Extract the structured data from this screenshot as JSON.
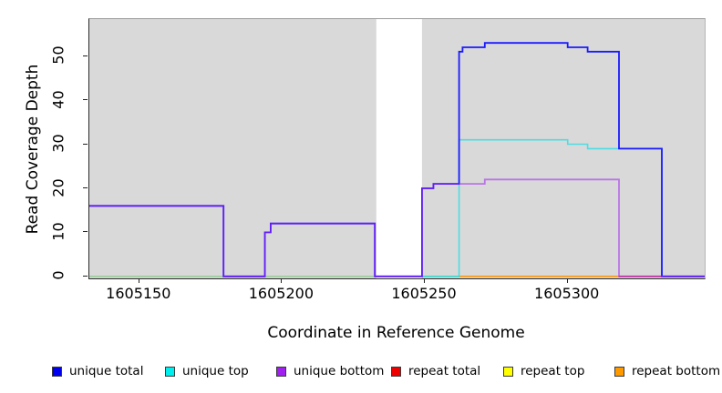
{
  "chart_data": {
    "type": "line",
    "subtype": "step-coverage-plot",
    "title": "",
    "xlabel": "Coordinate in Reference Genome",
    "ylabel": "Read Coverage Depth",
    "xlim": [
      1605132.5,
      1605348
    ],
    "ylim": [
      -0.45,
      58.4
    ],
    "x_ticks": [
      1605150,
      1605200,
      1605250,
      1605300
    ],
    "y_ticks": [
      0,
      10,
      20,
      30,
      40,
      50
    ],
    "grid": false,
    "panel_bg": "#d9d9d9",
    "mask_region": {
      "x0": 1605233,
      "x1": 1605249,
      "color": "#ffffff"
    },
    "series": [
      {
        "id": "baseline-annotation",
        "legend_label": null,
        "color": "#8fcb8f",
        "opacity": 1,
        "width": 1.4,
        "layer": 0,
        "points": [
          [
            1605132.5,
            0
          ]
        ],
        "end": 1605262
      },
      {
        "id": "repeat-top",
        "legend_label": "repeat top",
        "color": "#ffff00",
        "opacity": 0.8,
        "width": 1.4,
        "layer": 1,
        "points": [
          [
            1605262,
            0
          ]
        ],
        "end": 1605318
      },
      {
        "id": "repeat-total",
        "legend_label": "repeat total",
        "color": "#ee0000",
        "opacity": 0.75,
        "width": 1.5,
        "layer": 1,
        "points": [
          [
            1605262,
            0
          ]
        ],
        "end": 1605333
      },
      {
        "id": "repeat-bottom",
        "legend_label": "repeat bottom",
        "color": "#ff9300",
        "opacity": 1,
        "width": 1.5,
        "layer": 1,
        "points": [
          [
            1605262,
            0
          ]
        ],
        "end": 1605318
      },
      {
        "id": "unique-top",
        "legend_label": "unique top",
        "color": "#00dfe8",
        "opacity": 0.65,
        "width": 1.6,
        "layer": 1,
        "points": [
          [
            1605249,
            0
          ],
          [
            1605262,
            31
          ],
          [
            1605300,
            30
          ],
          [
            1605307,
            29
          ],
          [
            1605333,
            0
          ]
        ],
        "end": 1605348
      },
      {
        "id": "unique-total",
        "legend_label": "unique total",
        "color": "#1a1aff",
        "opacity": 1,
        "width": 1.8,
        "layer": 1,
        "points": [
          [
            1605132.5,
            16
          ],
          [
            1605179.5,
            0
          ],
          [
            1605194,
            10
          ],
          [
            1605196,
            12
          ],
          [
            1605232.5,
            0
          ],
          [
            1605249,
            20
          ],
          [
            1605253,
            21
          ],
          [
            1605262,
            51
          ],
          [
            1605263.2,
            52
          ],
          [
            1605271,
            53
          ],
          [
            1605300,
            52
          ],
          [
            1605307,
            51
          ],
          [
            1605318,
            29
          ],
          [
            1605333,
            0
          ]
        ],
        "end": 1605348
      },
      {
        "id": "unique-bottom",
        "legend_label": "unique bottom",
        "color": "#a020f0",
        "opacity": 0.55,
        "width": 1.8,
        "layer": 1,
        "points": [
          [
            1605132.5,
            16
          ],
          [
            1605179.5,
            0
          ],
          [
            1605194,
            10
          ],
          [
            1605196,
            12
          ],
          [
            1605232.5,
            0
          ],
          [
            1605249,
            20
          ],
          [
            1605253,
            21
          ],
          [
            1605271,
            22
          ],
          [
            1605318,
            0
          ]
        ],
        "end": 1605348
      }
    ],
    "legend": [
      {
        "label": "unique total",
        "color": "#0000ee"
      },
      {
        "label": "unique top",
        "color": "#00eeee"
      },
      {
        "label": "unique bottom",
        "color": "#a020f0"
      },
      {
        "label": "repeat total",
        "color": "#ee0000"
      },
      {
        "label": "repeat top",
        "color": "#ffff00"
      },
      {
        "label": "repeat bottom",
        "color": "#ff9900"
      }
    ],
    "legend_position": "bottom"
  }
}
